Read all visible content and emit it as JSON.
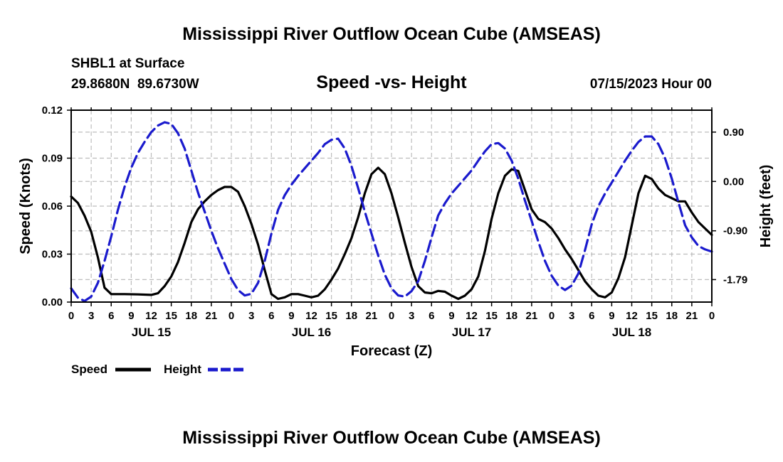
{
  "chart_data": {
    "type": "line",
    "title": "Mississippi River Outflow Ocean Cube (AMSEAS)",
    "footer_title": "Mississippi River Outflow Ocean Cube (AMSEAS)",
    "station": "SHBL1 at Surface",
    "coordinates": "29.8680N  89.6730W",
    "subtitle": "Speed -vs- Height",
    "date": "07/15/2023 Hour 00",
    "xlabel": "Forecast (Z)",
    "ylabel_left": "Speed (Knots)",
    "ylabel_right": "Height (feet)",
    "x_range_hours": [
      0,
      96
    ],
    "ylim_left": [
      0,
      0.12
    ],
    "ylim_right": [
      -2.2,
      1.3
    ],
    "x_tick_labels": [
      "0",
      "3",
      "6",
      "9",
      "12",
      "15",
      "18",
      "21",
      "0",
      "3",
      "6",
      "9",
      "12",
      "15",
      "18",
      "21",
      "0",
      "3",
      "6",
      "9",
      "12",
      "15",
      "18",
      "21",
      "0",
      "3",
      "6",
      "9",
      "12",
      "15",
      "18",
      "21",
      "0"
    ],
    "day_labels": [
      {
        "label": "JUL 15",
        "hour": 12
      },
      {
        "label": "JUL 16",
        "hour": 36
      },
      {
        "label": "JUL 17",
        "hour": 60
      },
      {
        "label": "JUL 18",
        "hour": 84
      }
    ],
    "y_left_ticks": [
      {
        "value": 0.0,
        "label": "0.00"
      },
      {
        "value": 0.03,
        "label": "0.03"
      },
      {
        "value": 0.06,
        "label": "0.06"
      },
      {
        "value": 0.09,
        "label": "0.09"
      },
      {
        "value": 0.12,
        "label": "0.12"
      }
    ],
    "y_right_ticks": [
      {
        "value": 0.9,
        "label": "0.90"
      },
      {
        "value": 0.0,
        "label": "0.00"
      },
      {
        "value": -0.9,
        "label": "-0.90"
      },
      {
        "value": -1.79,
        "label": "-1.79"
      }
    ],
    "series": [
      {
        "name": "Speed",
        "axis": "left",
        "color": "#000000",
        "dash": "solid",
        "points": [
          [
            0,
            0.066
          ],
          [
            1,
            0.062
          ],
          [
            2,
            0.054
          ],
          [
            3,
            0.044
          ],
          [
            4,
            0.028
          ],
          [
            5,
            0.009
          ],
          [
            6,
            0.005
          ],
          [
            8,
            0.005
          ],
          [
            10,
            0.0048
          ],
          [
            12,
            0.0045
          ],
          [
            13,
            0.0055
          ],
          [
            14,
            0.01
          ],
          [
            15,
            0.016
          ],
          [
            16,
            0.025
          ],
          [
            17,
            0.037
          ],
          [
            18,
            0.05
          ],
          [
            19,
            0.058
          ],
          [
            20,
            0.063
          ],
          [
            21,
            0.067
          ],
          [
            22,
            0.07
          ],
          [
            23,
            0.072
          ],
          [
            24,
            0.072
          ],
          [
            25,
            0.069
          ],
          [
            26,
            0.06
          ],
          [
            27,
            0.049
          ],
          [
            28,
            0.036
          ],
          [
            29,
            0.02
          ],
          [
            30,
            0.005
          ],
          [
            31,
            0.002
          ],
          [
            32,
            0.003
          ],
          [
            33,
            0.005
          ],
          [
            34,
            0.005
          ],
          [
            35,
            0.004
          ],
          [
            36,
            0.003
          ],
          [
            37,
            0.004
          ],
          [
            38,
            0.008
          ],
          [
            39,
            0.014
          ],
          [
            40,
            0.021
          ],
          [
            41,
            0.03
          ],
          [
            42,
            0.04
          ],
          [
            43,
            0.053
          ],
          [
            44,
            0.068
          ],
          [
            45,
            0.08
          ],
          [
            46,
            0.084
          ],
          [
            47,
            0.08
          ],
          [
            48,
            0.068
          ],
          [
            49,
            0.053
          ],
          [
            50,
            0.037
          ],
          [
            51,
            0.022
          ],
          [
            52,
            0.01
          ],
          [
            53,
            0.006
          ],
          [
            54,
            0.0055
          ],
          [
            55,
            0.007
          ],
          [
            56,
            0.0065
          ],
          [
            57,
            0.004
          ],
          [
            58,
            0.002
          ],
          [
            59,
            0.004
          ],
          [
            60,
            0.008
          ],
          [
            61,
            0.016
          ],
          [
            62,
            0.032
          ],
          [
            63,
            0.052
          ],
          [
            64,
            0.068
          ],
          [
            65,
            0.079
          ],
          [
            66,
            0.083
          ],
          [
            67,
            0.082
          ],
          [
            68,
            0.07
          ],
          [
            69,
            0.058
          ],
          [
            70,
            0.052
          ],
          [
            71,
            0.05
          ],
          [
            72,
            0.046
          ],
          [
            73,
            0.04
          ],
          [
            74,
            0.033
          ],
          [
            75,
            0.027
          ],
          [
            76,
            0.02
          ],
          [
            77,
            0.013
          ],
          [
            78,
            0.008
          ],
          [
            79,
            0.004
          ],
          [
            80,
            0.003
          ],
          [
            81,
            0.006
          ],
          [
            82,
            0.015
          ],
          [
            83,
            0.028
          ],
          [
            84,
            0.048
          ],
          [
            85,
            0.068
          ],
          [
            86,
            0.079
          ],
          [
            87,
            0.077
          ],
          [
            88,
            0.071
          ],
          [
            89,
            0.067
          ],
          [
            90,
            0.065
          ],
          [
            91,
            0.063
          ],
          [
            92,
            0.063
          ],
          [
            93,
            0.056
          ],
          [
            94,
            0.05
          ],
          [
            95,
            0.046
          ],
          [
            96,
            0.042
          ]
        ]
      },
      {
        "name": "Height",
        "axis": "right",
        "color": "#1a1acd",
        "dash": "dashed",
        "points": [
          [
            0,
            -1.95
          ],
          [
            1,
            -2.12
          ],
          [
            2,
            -2.18
          ],
          [
            3,
            -2.1
          ],
          [
            4,
            -1.85
          ],
          [
            5,
            -1.45
          ],
          [
            6,
            -1.0
          ],
          [
            7,
            -0.52
          ],
          [
            8,
            -0.1
          ],
          [
            9,
            0.25
          ],
          [
            10,
            0.52
          ],
          [
            11,
            0.72
          ],
          [
            12,
            0.9
          ],
          [
            13,
            1.02
          ],
          [
            14,
            1.08
          ],
          [
            15,
            1.05
          ],
          [
            16,
            0.88
          ],
          [
            17,
            0.6
          ],
          [
            18,
            0.2
          ],
          [
            19,
            -0.2
          ],
          [
            20,
            -0.55
          ],
          [
            21,
            -0.9
          ],
          [
            22,
            -1.22
          ],
          [
            23,
            -1.5
          ],
          [
            24,
            -1.78
          ],
          [
            25,
            -1.98
          ],
          [
            26,
            -2.08
          ],
          [
            27,
            -2.05
          ],
          [
            28,
            -1.85
          ],
          [
            29,
            -1.45
          ],
          [
            30,
            -0.95
          ],
          [
            31,
            -0.52
          ],
          [
            32,
            -0.25
          ],
          [
            33,
            -0.06
          ],
          [
            34,
            0.1
          ],
          [
            35,
            0.24
          ],
          [
            36,
            0.38
          ],
          [
            37,
            0.52
          ],
          [
            38,
            0.68
          ],
          [
            39,
            0.76
          ],
          [
            40,
            0.78
          ],
          [
            41,
            0.6
          ],
          [
            42,
            0.28
          ],
          [
            43,
            -0.12
          ],
          [
            44,
            -0.55
          ],
          [
            45,
            -0.95
          ],
          [
            46,
            -1.35
          ],
          [
            47,
            -1.7
          ],
          [
            48,
            -1.95
          ],
          [
            49,
            -2.08
          ],
          [
            50,
            -2.1
          ],
          [
            51,
            -2.0
          ],
          [
            52,
            -1.82
          ],
          [
            53,
            -1.45
          ],
          [
            54,
            -1.02
          ],
          [
            55,
            -0.62
          ],
          [
            56,
            -0.4
          ],
          [
            57,
            -0.22
          ],
          [
            58,
            -0.08
          ],
          [
            59,
            0.06
          ],
          [
            60,
            0.2
          ],
          [
            61,
            0.38
          ],
          [
            62,
            0.55
          ],
          [
            63,
            0.68
          ],
          [
            64,
            0.7
          ],
          [
            65,
            0.6
          ],
          [
            66,
            0.38
          ],
          [
            67,
            0.05
          ],
          [
            68,
            -0.35
          ],
          [
            69,
            -0.72
          ],
          [
            70,
            -1.1
          ],
          [
            71,
            -1.45
          ],
          [
            72,
            -1.72
          ],
          [
            73,
            -1.9
          ],
          [
            74,
            -1.98
          ],
          [
            75,
            -1.9
          ],
          [
            76,
            -1.68
          ],
          [
            77,
            -1.25
          ],
          [
            78,
            -0.78
          ],
          [
            79,
            -0.45
          ],
          [
            80,
            -0.22
          ],
          [
            81,
            -0.02
          ],
          [
            82,
            0.18
          ],
          [
            83,
            0.38
          ],
          [
            84,
            0.56
          ],
          [
            85,
            0.72
          ],
          [
            86,
            0.82
          ],
          [
            87,
            0.82
          ],
          [
            88,
            0.68
          ],
          [
            89,
            0.42
          ],
          [
            90,
            0.05
          ],
          [
            91,
            -0.38
          ],
          [
            92,
            -0.8
          ],
          [
            93,
            -1.02
          ],
          [
            94,
            -1.18
          ],
          [
            95,
            -1.24
          ],
          [
            96,
            -1.28
          ]
        ]
      }
    ],
    "legend": [
      {
        "label": "Speed",
        "color": "#000000",
        "dash": "solid"
      },
      {
        "label": "Height",
        "color": "#1a1acd",
        "dash": "dashed"
      }
    ]
  }
}
